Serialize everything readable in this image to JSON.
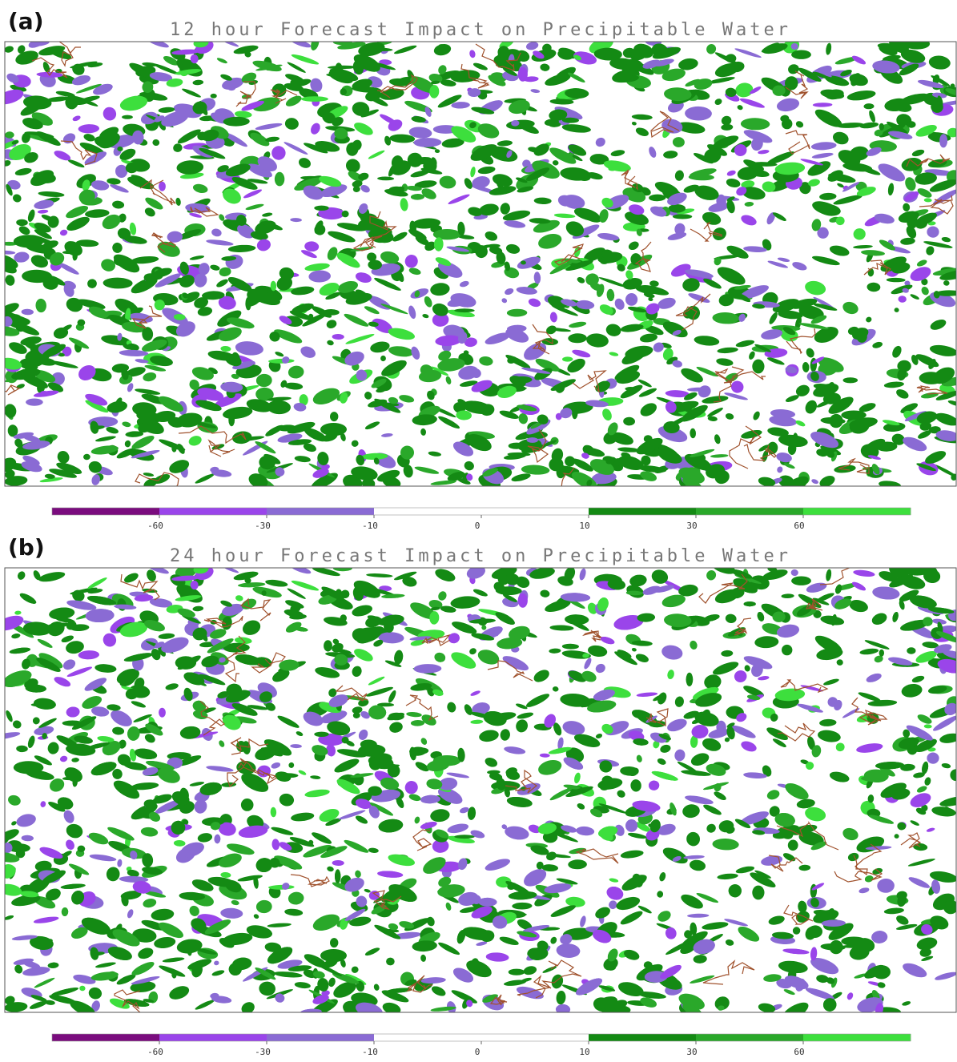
{
  "panels": [
    {
      "label": "(a)",
      "title": "12 hour Forecast Impact on Precipitable Water"
    },
    {
      "label": "(b)",
      "title": "24 hour Forecast Impact on Precipitable Water"
    }
  ],
  "colorbar": {
    "colors": [
      "#7a0c7e",
      "#9a45ea",
      "#8a6bd4",
      "#ffffff",
      "#ffffff",
      "#148a14",
      "#2aa82a",
      "#3ddf3d"
    ],
    "ticks": [
      "-60",
      "-30",
      "-10",
      "0",
      "10",
      "30",
      "60"
    ]
  }
}
